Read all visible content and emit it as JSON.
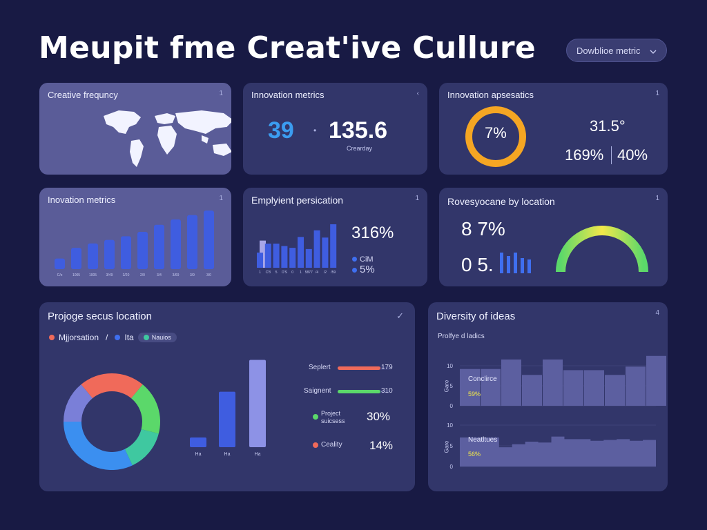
{
  "header": {
    "title": "Meupit fme Creat'ive Cullure",
    "dropdown_label": "Dowblioe metric",
    "dropdown_icon": "chevron-down-icon"
  },
  "colors": {
    "background": "#181a44",
    "card": "#32366a",
    "card_light": "#5a5c98",
    "bar_blue": "#3f5de0",
    "accent_blue": "#3b9cf0",
    "orange": "#f5a623",
    "green": "#5bd86a",
    "red": "#f06a5a"
  },
  "cards": {
    "creative_frequency": {
      "title": "Creative frequncy",
      "icon": "1"
    },
    "innovation_metrics_kpi": {
      "title": "Innovation metrics",
      "icon": "‹",
      "value_a": "39",
      "separator": "•",
      "value_b": "135.6",
      "caption": "Crearday"
    },
    "innovation_aesthetics": {
      "title": "Innovation apsesatics",
      "icon": "1",
      "ring_label": "7%",
      "value_top": "31.5°",
      "value_left": "169%",
      "value_right": "40%"
    },
    "innovation_bar": {
      "title": "Inovation metrics",
      "icon": "1"
    },
    "employment_persication": {
      "title": "Emplyient persication",
      "icon": "1",
      "big_value": "316%",
      "legend": [
        {
          "label": "CiM",
          "color": "#3f6ff0"
        },
        {
          "label": "5%",
          "color": "#3f6ff0"
        }
      ]
    },
    "revenue_location": {
      "title": "Rovesyocane by location",
      "icon": "1",
      "value_top": "8 7%",
      "value_bottom": "0 5."
    },
    "project_success": {
      "title": "Projoge secus location",
      "icon": "✓",
      "legend": [
        {
          "label": "Mjjorsation",
          "color": "#f06a5a"
        },
        {
          "label": "/",
          "color": ""
        },
        {
          "label": "Ita",
          "color": "#3f6ff0"
        },
        {
          "label": "Nauios",
          "color": "#3fc8a0"
        }
      ],
      "rows": [
        {
          "label": "Seplert",
          "value": "179",
          "color": "#f06a5a",
          "fill": 0.82
        },
        {
          "label": "Saignent",
          "value": "310",
          "color": "#5bd86a",
          "fill": 0.82
        }
      ],
      "stats": [
        {
          "label": "Project\nsuicsess",
          "value": "30%",
          "color": "#5bd86a"
        },
        {
          "label": "Ceality",
          "value": "14%",
          "color": "#f06a5a"
        }
      ]
    },
    "diversity_ideas": {
      "title": "Diversity of ideas",
      "icon": "4",
      "subtitle": "Prolfye d ladics",
      "top_panel": {
        "label": "Conclirce",
        "value": "59%"
      },
      "bottom_panel": {
        "label": "Neatltues",
        "value": "56%"
      },
      "y_side_label": "Gare"
    }
  },
  "chart_data": [
    {
      "id": "innovation_bar",
      "type": "bar",
      "categories": [
        "C/o",
        "1005",
        "1005",
        "3/49",
        "3/20",
        "2/0",
        "3/4",
        "3/69",
        "3/9",
        "3/0"
      ],
      "values": [
        12,
        24,
        29,
        33,
        37,
        42,
        50,
        56,
        61,
        66
      ],
      "ylim": [
        0,
        70
      ]
    },
    {
      "id": "employment_bar",
      "type": "bar",
      "categories": [
        "1",
        "C'8",
        "5",
        "O'S",
        "0",
        "1",
        "5877",
        "/4",
        "/2",
        "/59"
      ],
      "series": [
        {
          "values": [
            25,
            40,
            40,
            36,
            33,
            51,
            31,
            62,
            50,
            72
          ],
          "color": "#3f5de0"
        },
        {
          "values": [
            45,
            0,
            0,
            0,
            0,
            0,
            0,
            0,
            0,
            0
          ],
          "color": "#a8a6e8"
        }
      ],
      "ylim": [
        0,
        80
      ]
    },
    {
      "id": "innovation_aesthetics_ring",
      "type": "pie",
      "values": [
        100
      ],
      "labels": [
        "7%"
      ]
    },
    {
      "id": "revenue_gauge",
      "type": "bar",
      "categories": [
        "",
        "",
        "",
        "",
        ""
      ],
      "values": [
        30,
        25,
        30,
        22,
        20
      ],
      "gauge_level": 0.9
    },
    {
      "id": "project_donut",
      "type": "pie",
      "labels": [
        "Mjjorsation",
        "Ita",
        "Nauios",
        "",
        ""
      ],
      "values": [
        22,
        18,
        14,
        32,
        14
      ]
    },
    {
      "id": "project_bar",
      "type": "bar",
      "categories": [
        "Ha",
        "Ha",
        "Ha"
      ],
      "values": [
        12,
        68,
        107
      ],
      "ylim": [
        0,
        110
      ]
    },
    {
      "id": "diversity_top",
      "type": "bar",
      "y_ticks": [
        "10",
        "5",
        "0"
      ],
      "values": [
        62,
        62,
        78,
        52,
        78,
        60,
        60,
        52,
        66,
        84
      ],
      "ylim": [
        0,
        100
      ]
    },
    {
      "id": "diversity_bottom",
      "type": "area",
      "y_ticks": [
        "10",
        "5",
        "0"
      ],
      "values": [
        68,
        68,
        68,
        45,
        52,
        58,
        56,
        70,
        64,
        64,
        60,
        62,
        64,
        60,
        62
      ],
      "ylim": [
        0,
        100
      ]
    }
  ]
}
